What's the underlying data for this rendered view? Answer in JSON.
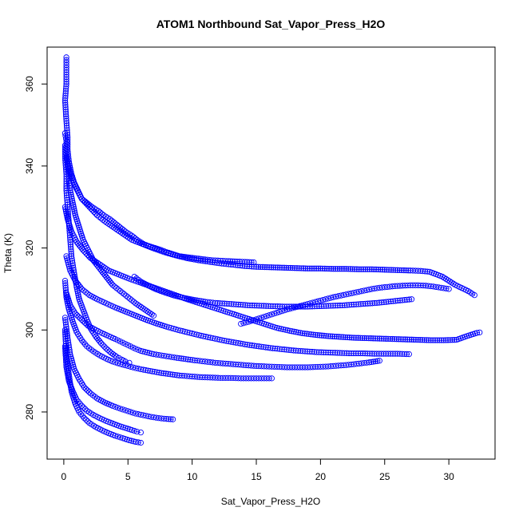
{
  "chart_data": {
    "type": "scatter",
    "title": "ATOM1 Northbound Sat_Vapor_Press_H2O",
    "xlabel": "Sat_Vapor_Press_H2O",
    "ylabel": "Theta (K)",
    "xlim": [
      -1.3,
      33.6
    ],
    "ylim": [
      268.5,
      369.0
    ],
    "xticks": [
      0,
      5,
      10,
      15,
      20,
      25,
      30
    ],
    "yticks": [
      280,
      300,
      320,
      340,
      360
    ],
    "grid": false,
    "marker": "open-circle",
    "color": "#0000ff",
    "series": [
      {
        "name": "",
        "x": [
          0.2,
          0.2,
          0.2,
          0.1,
          0.2,
          0.3,
          0.3,
          0.4,
          0.6,
          0.8,
          1.1,
          1.4,
          1.8,
          2.2,
          2.7,
          3.1,
          3.6,
          4.0,
          4.4,
          4.8,
          5.3,
          5.7,
          6.2,
          6.6,
          7.1,
          7.6,
          8.0,
          8.5,
          9.0,
          9.5,
          10.0,
          10.5,
          11.0,
          11.6,
          12.2,
          12.8,
          13.5,
          14.1,
          14.8
        ],
        "y": [
          366.5,
          364,
          360,
          356,
          351,
          347,
          344,
          341,
          338,
          336,
          334,
          332,
          331,
          330,
          329,
          328,
          327,
          326,
          325,
          324,
          323,
          322,
          321,
          320.5,
          320,
          319.5,
          319,
          318.5,
          318,
          317.8,
          317.6,
          317.4,
          317.2,
          317,
          316.9,
          316.8,
          316.7,
          316.6,
          316.5
        ]
      },
      {
        "name": "",
        "x": [
          0.2,
          0.5,
          0.9,
          1.4,
          2.0,
          2.6,
          3.2,
          3.9,
          4.6,
          5.3,
          6.1,
          6.9,
          7.8,
          8.7,
          9.6,
          10.5,
          11.4,
          12.3,
          13.2,
          14.1,
          15.0,
          16.0,
          17.0,
          18.0,
          19.0,
          20.0,
          21.0,
          22.0,
          23.0,
          24.0,
          25.0,
          26.0,
          27.0,
          27.8,
          28.5,
          29.5,
          30.5,
          31.5,
          32.0
        ],
        "y": [
          342,
          338,
          335,
          332,
          330,
          328,
          326.5,
          325,
          323.5,
          322,
          321,
          320,
          319,
          318.2,
          317.5,
          317,
          316.6,
          316.2,
          315.9,
          315.6,
          315.4,
          315.3,
          315.2,
          315.1,
          315.0,
          315.0,
          314.9,
          314.9,
          314.8,
          314.8,
          314.7,
          314.6,
          314.5,
          314.4,
          314.2,
          313,
          311,
          309.5,
          308.5
        ]
      },
      {
        "name": "",
        "x": [
          0.1,
          0.3,
          0.6,
          1.0,
          1.5,
          2.1,
          2.8,
          3.5,
          4.3,
          5.1,
          6.0,
          6.9,
          7.8,
          8.7,
          9.6,
          10.6,
          11.6,
          12.6,
          13.6,
          14.6,
          15.6,
          16.6,
          17.6,
          18.6,
          19.6,
          20.6,
          21.6,
          22.6,
          23.6,
          24.6,
          25.6,
          26.6,
          27.6,
          28.6,
          29.6,
          30.6,
          31.4,
          32.2,
          32.4
        ],
        "y": [
          330,
          327,
          324,
          321.5,
          319.5,
          317.5,
          316,
          314.5,
          313.5,
          312.5,
          311.5,
          310.5,
          309.5,
          308.5,
          307.5,
          306.5,
          305.5,
          304.5,
          303.5,
          302.5,
          301.5,
          300.5,
          299.8,
          299.2,
          298.8,
          298.5,
          298.3,
          298.1,
          298.0,
          297.9,
          297.8,
          297.7,
          297.6,
          297.5,
          297.5,
          297.6,
          298.5,
          299.3,
          299.4
        ]
      },
      {
        "name": "",
        "x": [
          0.2,
          0.5,
          0.9,
          1.4,
          2.0,
          2.6,
          3.3,
          4.0,
          4.8,
          5.6,
          6.4,
          7.2,
          8.0,
          8.9,
          9.8,
          10.7,
          11.6,
          12.5,
          13.4,
          14.3,
          15.2,
          16.1,
          17.0,
          17.9,
          18.8,
          19.7,
          20.6,
          21.5,
          22.4,
          23.3,
          24.2,
          25.1,
          26.0,
          26.9
        ],
        "y": [
          318,
          314.5,
          312,
          310,
          308.5,
          307.5,
          306.5,
          305.5,
          304.5,
          303.5,
          302.5,
          301.6,
          300.8,
          300.0,
          299.3,
          298.6,
          298.0,
          297.4,
          296.9,
          296.4,
          296.0,
          295.6,
          295.3,
          295.0,
          294.8,
          294.6,
          294.5,
          294.4,
          294.3,
          294.3,
          294.2,
          294.2,
          294.2,
          294.1
        ]
      },
      {
        "name": "",
        "x": [
          0.1,
          0.2,
          0.4,
          0.7,
          1.0,
          1.4,
          1.8,
          2.3,
          2.8,
          3.3,
          3.8,
          4.4,
          5.0,
          5.6,
          6.2,
          6.9,
          7.6,
          8.3,
          9.0,
          9.8,
          10.6,
          11.4,
          12.2,
          13.0,
          13.8,
          14.6,
          15.4,
          16.2
        ],
        "y": [
          312,
          308,
          305,
          302,
          299.5,
          297.5,
          296,
          294.8,
          293.8,
          293,
          292.3,
          291.7,
          291.2,
          290.7,
          290.3,
          289.9,
          289.5,
          289.2,
          288.9,
          288.7,
          288.5,
          288.4,
          288.3,
          288.3,
          288.2,
          288.2,
          288.2,
          288.2
        ]
      },
      {
        "name": "",
        "x": [
          0.1,
          0.3,
          0.5,
          0.8,
          1.2,
          1.6,
          2.1,
          2.6,
          3.2,
          3.8,
          4.4,
          5.0,
          5.6,
          6.2,
          6.8,
          7.4,
          8.0,
          8.5
        ],
        "y": [
          303,
          298,
          294,
          290.5,
          288,
          286,
          284.5,
          283.3,
          282.3,
          281.5,
          280.8,
          280.2,
          279.6,
          279.2,
          278.8,
          278.5,
          278.3,
          278.2
        ]
      },
      {
        "name": "",
        "x": [
          0.1,
          0.2,
          0.4,
          0.6,
          0.9,
          1.2,
          1.6,
          2.0,
          2.5,
          3.0,
          3.5,
          4.0,
          4.6,
          5.1,
          5.6,
          6.0
        ],
        "y": [
          300,
          294,
          289,
          285,
          282,
          280,
          278.5,
          277.3,
          276.3,
          275.5,
          274.8,
          274.2,
          273.6,
          273.1,
          272.7,
          272.5
        ]
      },
      {
        "name": "",
        "x": [
          0.1,
          0.2,
          0.4,
          0.7,
          1.0,
          1.4,
          1.8,
          2.3,
          2.8,
          3.3,
          3.8,
          4.3,
          4.8,
          5.3,
          5.7,
          6.0
        ],
        "y": [
          296,
          291,
          287.5,
          285,
          283,
          281.5,
          280.3,
          279.3,
          278.5,
          277.8,
          277.2,
          276.6,
          276.1,
          275.6,
          275.2,
          275
        ]
      },
      {
        "name": "",
        "x": [
          0.2,
          0.5,
          0.9,
          1.4,
          1.9,
          2.5,
          3.0,
          3.5,
          4.0,
          4.4,
          4.8,
          5.2,
          5.6,
          6.0,
          6.5,
          7.0,
          7.6,
          8.2,
          8.8,
          9.5,
          10.2,
          11.0,
          11.8,
          12.6,
          13.4,
          14.2,
          15.0,
          15.8,
          16.6,
          17.4,
          18.2,
          19.0,
          19.8,
          20.6,
          21.4,
          22.2,
          23.0,
          23.8,
          24.6
        ],
        "y": [
          309,
          306,
          304,
          302.5,
          301,
          300,
          299.2,
          298.5,
          297.8,
          297.2,
          296.6,
          296.0,
          295.4,
          294.9,
          294.5,
          294.1,
          293.8,
          293.5,
          293.2,
          292.9,
          292.6,
          292.3,
          292.0,
          291.8,
          291.6,
          291.4,
          291.2,
          291.1,
          291.0,
          290.9,
          290.9,
          290.9,
          291.0,
          291.1,
          291.3,
          291.5,
          291.8,
          292.1,
          292.5
        ]
      },
      {
        "name": "",
        "x": [
          13.8,
          14.4,
          15.0,
          15.6,
          16.2,
          16.8,
          17.4,
          18.0,
          18.6,
          19.2,
          19.8,
          20.4,
          21.0,
          21.6,
          22.2,
          22.8,
          23.4,
          24.0,
          24.6,
          25.2,
          25.8,
          26.4,
          27.0,
          27.6,
          28.2,
          28.8,
          29.4,
          30.0
        ],
        "y": [
          301.5,
          302.0,
          302.6,
          303.2,
          303.8,
          304.4,
          305.0,
          305.5,
          306.0,
          306.5,
          307.0,
          307.5,
          308.0,
          308.4,
          308.8,
          309.2,
          309.6,
          310.0,
          310.3,
          310.5,
          310.7,
          310.8,
          310.9,
          310.9,
          310.8,
          310.6,
          310.3,
          310.0
        ]
      },
      {
        "name": "",
        "x": [
          0.1,
          0.2,
          0.2,
          0.3,
          0.4,
          0.5,
          0.7,
          0.9,
          1.2,
          1.5,
          1.9,
          2.3,
          2.8,
          3.3,
          3.8,
          4.4,
          5.0,
          5.6,
          6.3,
          7.0
        ],
        "y": [
          348,
          346,
          343,
          340,
          337,
          334,
          331,
          328,
          325,
          322,
          319.5,
          317,
          315,
          313,
          311,
          309.5,
          308,
          306.5,
          305,
          303.5
        ]
      },
      {
        "name": "",
        "x": [
          0.1,
          0.1,
          0.2,
          0.2,
          0.3,
          0.4,
          0.5,
          0.6,
          0.8,
          1.0,
          1.2,
          1.5,
          1.8,
          2.1,
          2.5,
          2.9,
          3.3,
          3.7,
          4.1,
          4.5,
          4.8,
          5.1
        ],
        "y": [
          345,
          342,
          338,
          334,
          330,
          326,
          322,
          318,
          314,
          310.5,
          307.5,
          305,
          302.5,
          300.3,
          298.4,
          296.8,
          295.5,
          294.4,
          293.5,
          292.8,
          292.3,
          292.0
        ]
      },
      {
        "name": "",
        "x": [
          5.5,
          6.0,
          6.6,
          7.2,
          7.9,
          8.6,
          9.4,
          10.2,
          11.0,
          11.8,
          12.7,
          13.6,
          14.5,
          15.4,
          16.3,
          17.2,
          18.1,
          19.0,
          19.9,
          20.8,
          21.7,
          22.6,
          23.5,
          24.4,
          25.3,
          26.2,
          27.1
        ],
        "y": [
          313,
          311.8,
          310.8,
          309.9,
          309.1,
          308.4,
          307.8,
          307.3,
          306.9,
          306.6,
          306.4,
          306.2,
          306.0,
          305.9,
          305.8,
          305.7,
          305.7,
          305.7,
          305.8,
          305.9,
          306.0,
          306.2,
          306.4,
          306.6,
          306.9,
          307.2,
          307.5
        ]
      }
    ]
  }
}
